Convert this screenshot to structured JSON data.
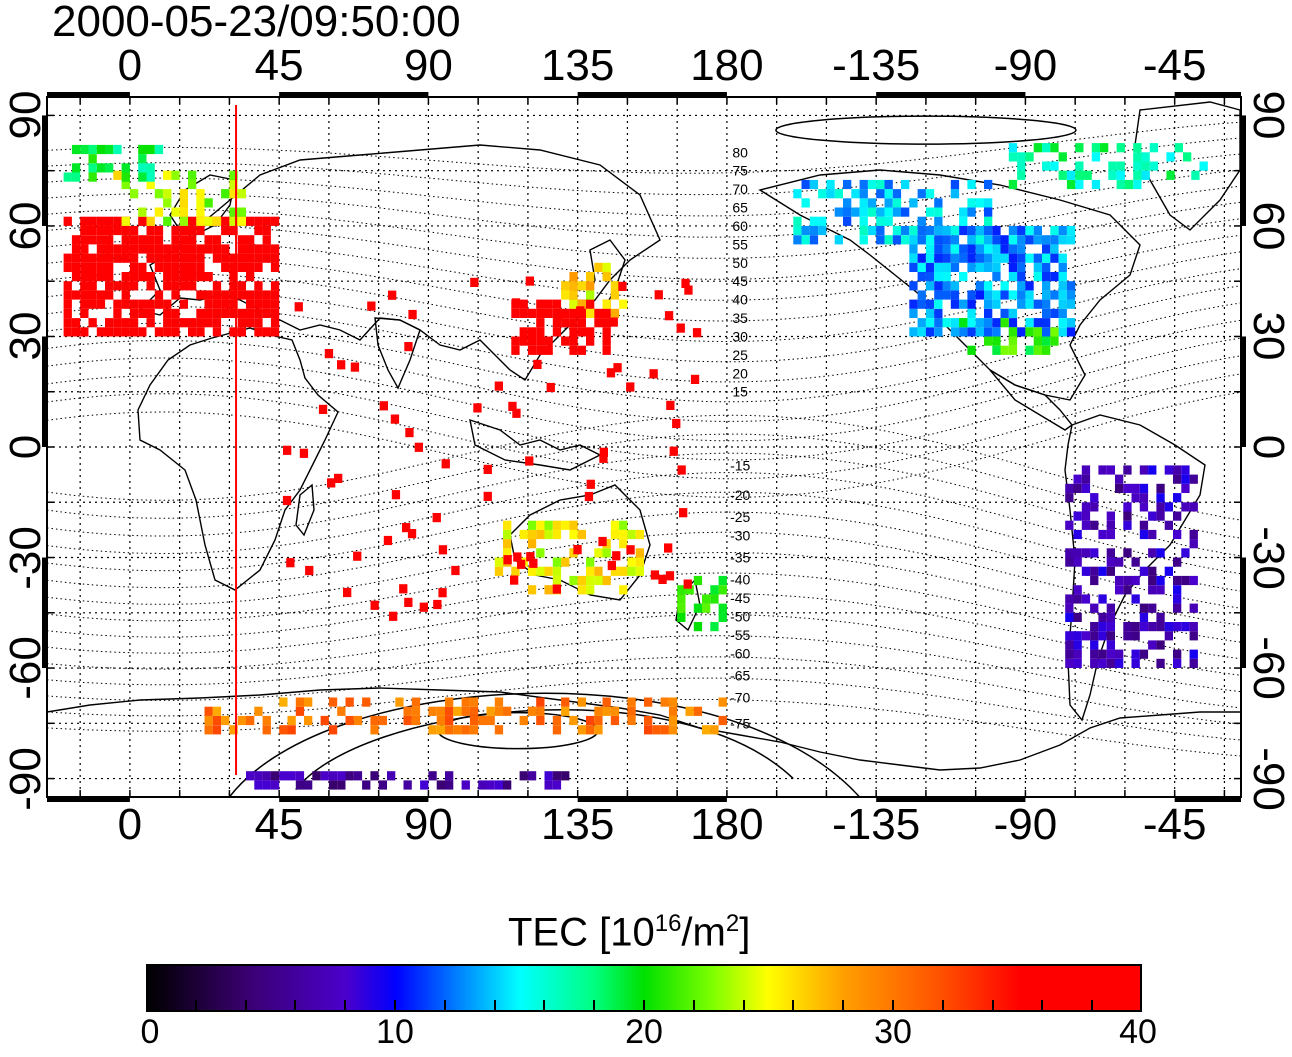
{
  "title": "2000-05-23/09:50:00",
  "axes": {
    "x_top_ticks": [
      "0",
      "45",
      "90",
      "135",
      "180",
      "-135",
      "-90",
      "-45"
    ],
    "x_bottom_ticks": [
      "0",
      "45",
      "90",
      "135",
      "180",
      "-135",
      "-90",
      "-45"
    ],
    "y_left_ticks": [
      "90",
      "60",
      "30",
      "0",
      "-30",
      "-60",
      "-90"
    ],
    "y_right_ticks": [
      "90",
      "60",
      "30",
      "0",
      "-30",
      "-60",
      "-90"
    ],
    "lon_range": [
      -25,
      335
    ],
    "lat_range": [
      -95,
      95
    ]
  },
  "map": {
    "marker_line_lon": 32,
    "marker_line_color": "#ff0000",
    "grid": "dotted 15 degrees",
    "contour_labels": [
      {
        "label": "80",
        "lat": 80
      },
      {
        "label": "75",
        "lat": 75
      },
      {
        "label": "70",
        "lat": 70
      },
      {
        "label": "65",
        "lat": 65
      },
      {
        "label": "60",
        "lat": 60
      },
      {
        "label": "55",
        "lat": 55
      },
      {
        "label": "50",
        "lat": 50
      },
      {
        "label": "45",
        "lat": 45
      },
      {
        "label": "40",
        "lat": 40
      },
      {
        "label": "35",
        "lat": 35
      },
      {
        "label": "30",
        "lat": 30
      },
      {
        "label": "25",
        "lat": 25
      },
      {
        "label": "20",
        "lat": 20
      },
      {
        "label": "15",
        "lat": 15
      },
      {
        "label": "-15",
        "lat": -5
      },
      {
        "label": "-20",
        "lat": -13
      },
      {
        "label": "-25",
        "lat": -19
      },
      {
        "label": "-30",
        "lat": -24
      },
      {
        "label": "-35",
        "lat": -30
      },
      {
        "label": "-40",
        "lat": -36
      },
      {
        "label": "-45",
        "lat": -41
      },
      {
        "label": "-50",
        "lat": -46
      },
      {
        "label": "-55",
        "lat": -51
      },
      {
        "label": "-60",
        "lat": -56
      },
      {
        "label": "-65",
        "lat": -62
      },
      {
        "label": "-70",
        "lat": -68
      },
      {
        "label": "-75",
        "lat": -75
      }
    ],
    "tec_regions": [
      {
        "name": "europe",
        "lon": [
          -20,
          45
        ],
        "lat": [
          30,
          62
        ],
        "tec": 39
      },
      {
        "name": "scandinavia",
        "lon": [
          -5,
          35
        ],
        "lat": [
          60,
          75
        ],
        "tec": 24
      },
      {
        "name": "north-atlantic",
        "lon": [
          -20,
          10
        ],
        "lat": [
          72,
          82
        ],
        "tec": 19
      },
      {
        "name": "east-asia",
        "lon": [
          115,
          145
        ],
        "lat": [
          25,
          40
        ],
        "tec": 38
      },
      {
        "name": "japan",
        "lon": [
          130,
          150
        ],
        "lat": [
          35,
          50
        ],
        "tec": 26
      },
      {
        "name": "north-america",
        "lon": [
          235,
          285
        ],
        "lat": [
          30,
          60
        ],
        "tec": 13
      },
      {
        "name": "alaska-canada",
        "lon": [
          200,
          260
        ],
        "lat": [
          55,
          72
        ],
        "tec": 14
      },
      {
        "name": "arctic-canada",
        "lon": [
          265,
          325
        ],
        "lat": [
          70,
          82
        ],
        "tec": 17
      },
      {
        "name": "us-south",
        "lon": [
          250,
          280
        ],
        "lat": [
          25,
          35
        ],
        "tec": 21
      },
      {
        "name": "south-america",
        "lon": [
          282,
          320
        ],
        "lat": [
          -60,
          -5
        ],
        "tec": 7
      },
      {
        "name": "australia",
        "lon": [
          110,
          155
        ],
        "lat": [
          -40,
          -20
        ],
        "tec": 25
      },
      {
        "name": "new-zealand",
        "lon": [
          165,
          180
        ],
        "lat": [
          -50,
          -35
        ],
        "tec": 20
      },
      {
        "name": "antarctic-coast",
        "lon": [
          20,
          180
        ],
        "lat": [
          -78,
          -70
        ],
        "tec": 30
      },
      {
        "name": "south-pole-band",
        "lon": [
          35,
          135
        ],
        "lat": [
          -93,
          -88
        ],
        "tec": 6
      }
    ]
  },
  "colorbar": {
    "title": "TEC  [10",
    "title_sup1": "16",
    "title_mid": "/m",
    "title_sup2": "2",
    "title_end": "]",
    "ticks": [
      "0",
      "10",
      "20",
      "30",
      "40"
    ],
    "range": [
      0,
      40
    ]
  }
}
